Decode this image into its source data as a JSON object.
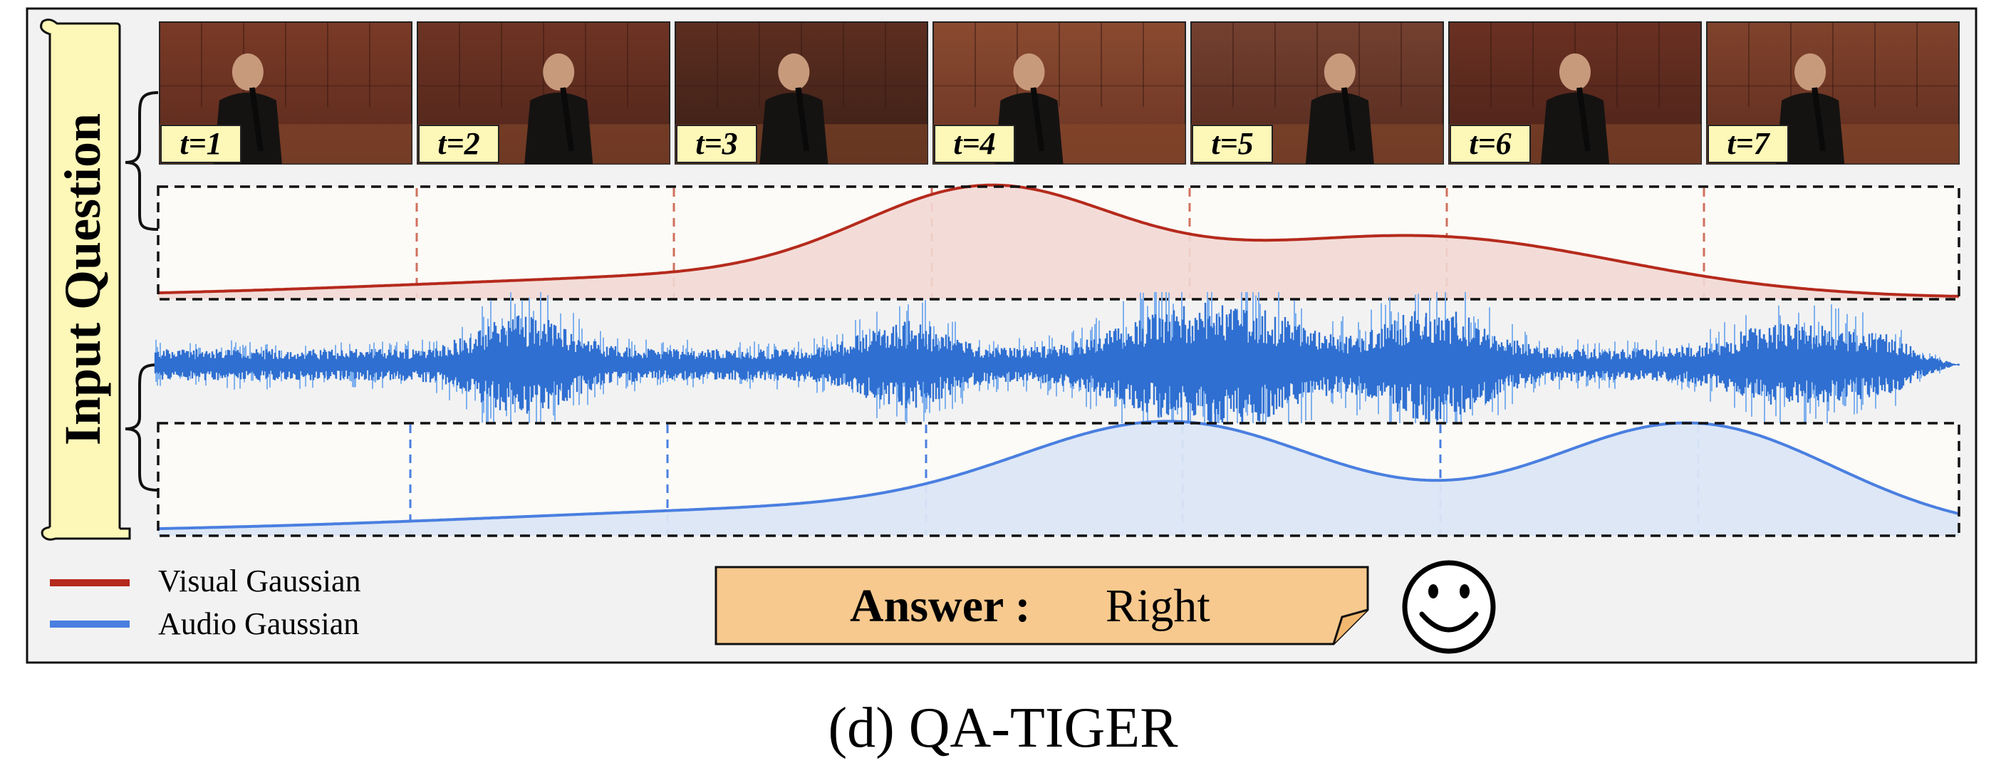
{
  "figure": {
    "caption": "(d) QA-TIGER",
    "scroll_label": "Input Question",
    "answer": {
      "label": "Answer :",
      "value": "Right"
    },
    "smiley": "☺"
  },
  "frames": [
    {
      "label": "t=1"
    },
    {
      "label": "t=2"
    },
    {
      "label": "t=3"
    },
    {
      "label": "t=4"
    },
    {
      "label": "t=5"
    },
    {
      "label": "t=6"
    },
    {
      "label": "t=7"
    }
  ],
  "legend": [
    {
      "label": "Visual Gaussian",
      "color": "#b52a1c"
    },
    {
      "label": "Audio Gaussian",
      "color": "#4a7fe0"
    }
  ],
  "colors": {
    "visual": "#b52a1c",
    "visual_fill": "#f2d8d4",
    "audio": "#4a7fe0",
    "audio_fill": "#dbe6f5",
    "waveform": "#2f6fd1",
    "panel_bg": "#f2f2f2",
    "plot_bg": "#fcfbf7",
    "scroll": "#fdf7b8",
    "answer_bg": "#f7c98e"
  }
}
